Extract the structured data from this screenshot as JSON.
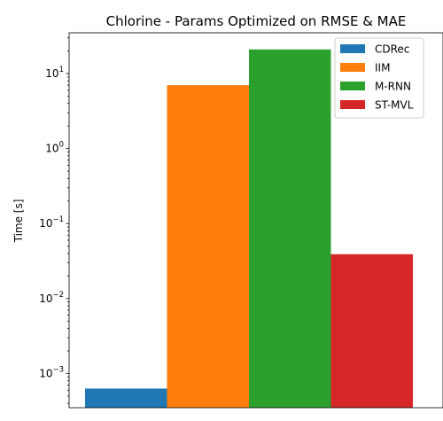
{
  "chart_data": {
    "type": "bar",
    "title": "Chlorine - Params Optimized on RMSE & MAE",
    "xlabel": "",
    "ylabel": "Time [s]",
    "yscale": "log",
    "ylim": [
      0.00035,
      35
    ],
    "yticks": [
      {
        "value": 0.001,
        "base": "10",
        "exp": "−3"
      },
      {
        "value": 0.01,
        "base": "10",
        "exp": "−2"
      },
      {
        "value": 0.1,
        "base": "10",
        "exp": "−1"
      },
      {
        "value": 1,
        "base": "10",
        "exp": "0"
      },
      {
        "value": 10,
        "base": "10",
        "exp": "1"
      }
    ],
    "grid": false,
    "legend_position": "top-right",
    "series": [
      {
        "name": "CDRec",
        "value": 0.00063,
        "color": "#1f77b4"
      },
      {
        "name": "IIM",
        "value": 7.0,
        "color": "#ff7f0e"
      },
      {
        "name": "M-RNN",
        "value": 21.0,
        "color": "#2ca02c"
      },
      {
        "name": "ST-MVL",
        "value": 0.039,
        "color": "#d62728"
      }
    ]
  }
}
